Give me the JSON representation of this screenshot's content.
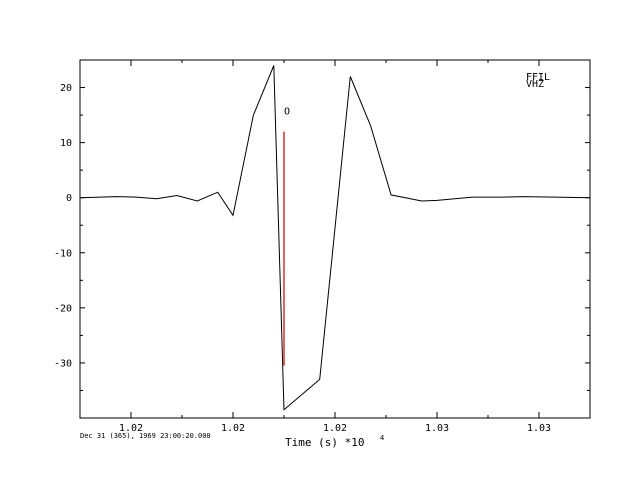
{
  "chart_data": {
    "type": "line",
    "station_label": "FFIL",
    "channel_label": "VHZ",
    "pick_label": "O",
    "date_label": "Dec 31 (365), 1969 23:00:20.000",
    "xlabel": "Time (s) *10",
    "xlabel_exponent": "4",
    "ylabel": "",
    "xlim": [
      10200,
      10300
    ],
    "ylim": [
      -40,
      25
    ],
    "x_tick_values": [
      10210,
      10230,
      10250,
      10270,
      10290
    ],
    "x_tick_labels": [
      "1.02",
      "1.02",
      "1.02",
      "1.03",
      "1.03"
    ],
    "x_minor_tick_values": [
      10200,
      10220,
      10240,
      10260,
      10280,
      10300
    ],
    "y_tick_values": [
      -30,
      -20,
      -10,
      0,
      10,
      20
    ],
    "y_tick_labels": [
      "-30",
      "-20",
      "-10",
      "0",
      "10",
      "20"
    ],
    "series": [
      {
        "color": "#000000",
        "x": [
          10200,
          10207,
          10211,
          10215,
          10219,
          10223,
          10227,
          10230,
          10234,
          10238,
          10240,
          10247,
          10253,
          10257,
          10261,
          10267,
          10270,
          10277,
          10283,
          10287,
          10293,
          10300
        ],
        "y": [
          0,
          0.2,
          0.1,
          -0.2,
          0.4,
          -0.6,
          1.0,
          -3.2,
          15,
          24,
          -38.5,
          -33,
          22,
          13,
          0.5,
          -0.6,
          -0.5,
          0.1,
          0.1,
          0.2,
          0.1,
          0
        ]
      }
    ],
    "pick_marker": {
      "x": 10240,
      "y_top": 12,
      "y_bottom": -30.5,
      "color": "#cc0000"
    },
    "grid": false
  }
}
